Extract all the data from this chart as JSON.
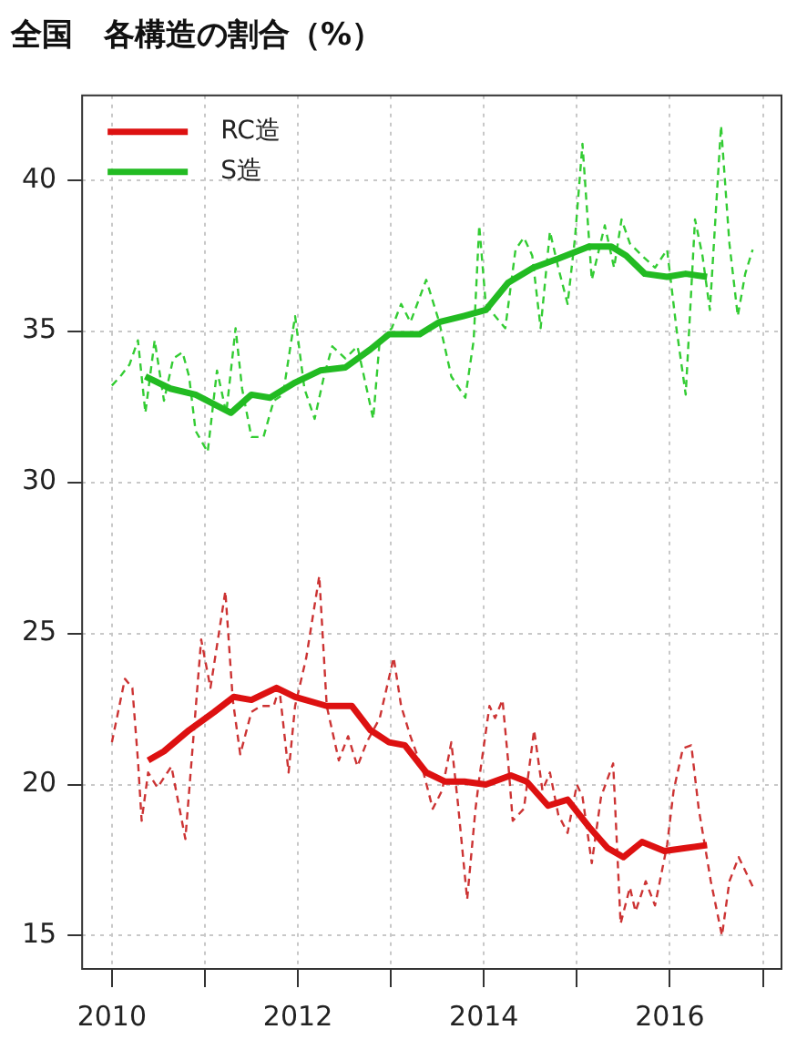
{
  "chart_data": {
    "type": "line",
    "title": "全国　各構造の割合（%）",
    "xlim": [
      2009.68,
      2017.2
    ],
    "ylim": [
      13.9,
      42.8
    ],
    "xticks": [
      2010,
      {
        "value": 2011,
        "label": null
      },
      2012,
      {
        "value": 2013,
        "label": null
      },
      2014,
      {
        "value": 2015,
        "label": null
      },
      2016,
      {
        "value": 2017,
        "label": null
      }
    ],
    "yticks": [
      15,
      20,
      25,
      30,
      35,
      40
    ],
    "grid": true,
    "legend": "top left",
    "marker": "none",
    "series": [
      {
        "name": "RC造",
        "color": "#dd1111",
        "line_style": "solid",
        "x": [
          2010.39,
          2010.56,
          2010.83,
          2011.1,
          2011.31,
          2011.5,
          2011.77,
          2011.97,
          2012.31,
          2012.58,
          2012.78,
          2012.98,
          2013.15,
          2013.38,
          2013.58,
          2013.79,
          2014.02,
          2014.29,
          2014.46,
          2014.69,
          2014.9,
          2015.13,
          2015.33,
          2015.5,
          2015.7,
          2015.94,
          2016.17,
          2016.4
        ],
        "values": [
          20.8,
          21.1,
          21.8,
          22.4,
          22.9,
          22.8,
          23.2,
          22.9,
          22.6,
          22.6,
          21.8,
          21.4,
          21.3,
          20.4,
          20.1,
          20.1,
          20.0,
          20.3,
          20.1,
          19.3,
          19.5,
          18.6,
          17.9,
          17.6,
          18.1,
          17.8,
          17.9,
          18.0
        ]
      },
      {
        "name": "S造",
        "color": "#22bb22",
        "line_style": "solid",
        "x": [
          2010.36,
          2010.63,
          2010.9,
          2011.28,
          2011.5,
          2011.7,
          2011.97,
          2012.24,
          2012.51,
          2012.78,
          2012.98,
          2013.31,
          2013.52,
          2013.78,
          2014.02,
          2014.26,
          2014.53,
          2014.8,
          2015.13,
          2015.37,
          2015.53,
          2015.73,
          2015.97,
          2016.17,
          2016.4
        ],
        "values": [
          33.5,
          33.1,
          32.9,
          32.3,
          32.9,
          32.8,
          33.3,
          33.7,
          33.8,
          34.4,
          34.9,
          34.9,
          35.3,
          35.5,
          35.7,
          36.6,
          37.1,
          37.4,
          37.8,
          37.8,
          37.5,
          36.9,
          36.8,
          36.9,
          36.8
        ]
      },
      {
        "color": "#cc3333",
        "line_style": "dashed",
        "x": [
          2010.0,
          2010.14,
          2010.22,
          2010.28,
          2010.32,
          2010.39,
          2010.49,
          2010.64,
          2010.79,
          2010.96,
          2011.06,
          2011.11,
          2011.22,
          2011.3,
          2011.38,
          2011.5,
          2011.6,
          2011.74,
          2011.8,
          2011.9,
          2011.97,
          2012.09,
          2012.23,
          2012.31,
          2012.44,
          2012.54,
          2012.64,
          2012.74,
          2012.88,
          2013.03,
          2013.11,
          2013.21,
          2013.35,
          2013.45,
          2013.55,
          2013.65,
          2013.72,
          2013.82,
          2013.91,
          2013.95,
          2014.06,
          2014.12,
          2014.2,
          2014.26,
          2014.31,
          2014.43,
          2014.54,
          2014.63,
          2014.71,
          2014.8,
          2014.9,
          2015.0,
          2015.06,
          2015.16,
          2015.26,
          2015.39,
          2015.47,
          2015.57,
          2015.63,
          2015.74,
          2015.84,
          2015.97,
          2016.04,
          2016.14,
          2016.23,
          2016.31,
          2016.44,
          2016.56,
          2016.64,
          2016.74,
          2016.91
        ],
        "values": [
          21.4,
          23.5,
          23.2,
          20.8,
          18.8,
          20.4,
          19.9,
          20.6,
          18.2,
          24.8,
          23.2,
          24.2,
          26.4,
          22.8,
          21.0,
          22.4,
          22.6,
          22.6,
          23.2,
          20.4,
          22.6,
          24.2,
          26.9,
          22.6,
          20.8,
          21.6,
          20.6,
          21.4,
          22.2,
          24.2,
          22.6,
          21.6,
          20.4,
          19.2,
          19.8,
          21.4,
          19.4,
          16.2,
          19.2,
          20.2,
          22.6,
          22.2,
          22.8,
          20.8,
          18.8,
          19.2,
          21.8,
          19.8,
          20.4,
          19.0,
          18.4,
          20.0,
          19.6,
          17.4,
          19.6,
          20.7,
          15.4,
          16.6,
          15.8,
          16.8,
          16.0,
          18.0,
          19.8,
          21.2,
          21.3,
          19.2,
          16.8,
          15.0,
          16.8,
          17.6,
          16.5
        ]
      },
      {
        "color": "#33cc33",
        "line_style": "dashed",
        "x": [
          2010.0,
          2010.09,
          2010.19,
          2010.28,
          2010.36,
          2010.46,
          2010.56,
          2010.66,
          2010.76,
          2010.83,
          2010.9,
          2011.03,
          2011.13,
          2011.23,
          2011.33,
          2011.4,
          2011.5,
          2011.63,
          2011.74,
          2011.84,
          2011.97,
          2012.07,
          2012.18,
          2012.28,
          2012.37,
          2012.51,
          2012.64,
          2012.81,
          2012.88,
          2013.01,
          2013.11,
          2013.21,
          2013.38,
          2013.52,
          2013.65,
          2013.8,
          2013.89,
          2013.95,
          2014.02,
          2014.12,
          2014.23,
          2014.34,
          2014.43,
          2014.52,
          2014.61,
          2014.71,
          2014.8,
          2014.9,
          2014.98,
          2015.06,
          2015.16,
          2015.3,
          2015.4,
          2015.48,
          2015.57,
          2015.7,
          2015.84,
          2015.97,
          2016.07,
          2016.17,
          2016.27,
          2016.35,
          2016.43,
          2016.55,
          2016.64,
          2016.73,
          2016.81,
          2016.89
        ],
        "values": [
          33.2,
          33.5,
          33.9,
          34.7,
          32.3,
          34.7,
          32.7,
          34.1,
          34.3,
          33.5,
          31.7,
          31.0,
          33.7,
          32.3,
          35.1,
          33.1,
          31.5,
          31.5,
          32.7,
          32.9,
          35.5,
          33.1,
          32.1,
          33.5,
          34.5,
          34.1,
          34.5,
          32.1,
          34.7,
          35.1,
          35.9,
          35.3,
          36.7,
          35.3,
          33.5,
          32.8,
          34.7,
          38.5,
          35.9,
          35.5,
          35.1,
          37.7,
          38.1,
          37.5,
          35.1,
          38.3,
          37.1,
          35.9,
          38.1,
          41.2,
          36.7,
          38.5,
          37.1,
          38.7,
          37.9,
          37.5,
          37.1,
          37.7,
          35.1,
          32.9,
          38.7,
          37.5,
          35.7,
          41.8,
          37.9,
          35.5,
          36.9,
          37.7
        ]
      }
    ]
  }
}
